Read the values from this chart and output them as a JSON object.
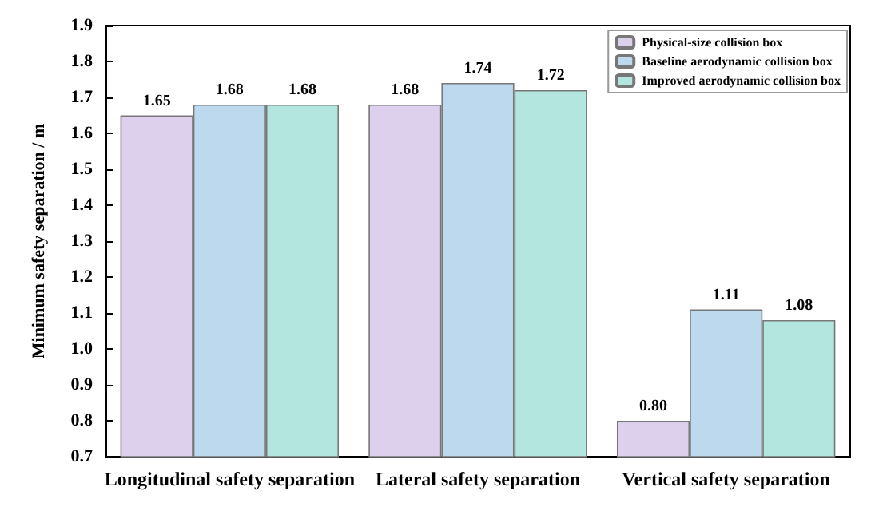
{
  "chart_data": {
    "type": "bar",
    "ylabel": "Minimum safety separation / m",
    "categories": [
      "Longitudinal safety separation",
      "Lateral safety separation",
      "Vertical safety separation"
    ],
    "series": [
      {
        "name": "Physical-size collision box",
        "color": "#dcd0ec",
        "values": [
          1.65,
          1.68,
          0.8
        ],
        "value_labels": [
          "1.65",
          "1.68",
          "0.80"
        ]
      },
      {
        "name": "Baseline aerodynamic collision box",
        "color": "#bcd9ee",
        "values": [
          1.68,
          1.74,
          1.11
        ],
        "value_labels": [
          "1.68",
          "1.74",
          "1.11"
        ]
      },
      {
        "name": "Improved aerodynamic collision box",
        "color": "#b3e6df",
        "values": [
          1.68,
          1.72,
          1.08
        ],
        "value_labels": [
          "1.68",
          "1.72",
          "1.08"
        ]
      }
    ],
    "ylim": [
      0.7,
      1.9
    ],
    "yticks": [
      0.7,
      0.8,
      0.9,
      {
        "value": 1,
        "label": "1.0"
      },
      1.1,
      1.2,
      1.3,
      1.4,
      1.5,
      1.6,
      1.7,
      1.8,
      1.9
    ],
    "grid": false,
    "legend": "top right"
  }
}
